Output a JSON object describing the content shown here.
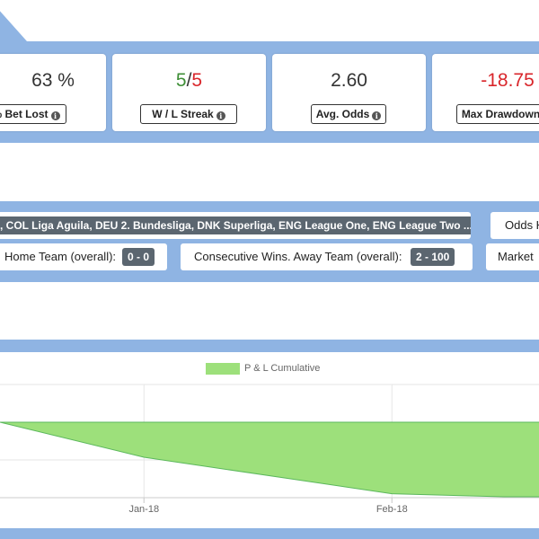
{
  "colors": {
    "accent_band": "#8fb4e3",
    "win": "#3e8e36",
    "loss": "#d9262b",
    "area_fill": "#9de07b",
    "area_line": "#5cb85c",
    "pill_bg": "#5b6670"
  },
  "stats": [
    {
      "value": "63 %",
      "label": "% Bet Lost"
    },
    {
      "wins": "5",
      "separator": "/",
      "losses": "5",
      "label": "W / L Streak"
    },
    {
      "value": "2.60",
      "label": "Avg. Odds"
    },
    {
      "value": "-18.75",
      "label": "Max Drawdown"
    }
  ],
  "filters": {
    "leagues": ", COL Liga Aguila, DEU 2. Bundesliga, DNK Superliga, ENG League One, ENG League Two ...",
    "odds_label": "Odds H",
    "home_label": "Home Team (overall):",
    "home_value": "0 - 0",
    "away_label": "Consecutive Wins. Away Team (overall):",
    "away_value": "2 - 100",
    "market_label": "Market"
  },
  "info_icon": "info-circle-icon",
  "chart_data": {
    "type": "area",
    "legend": [
      "P & L Cumulative"
    ],
    "x_tick_labels": [
      "Jan-18",
      "Feb-18"
    ],
    "series": [
      {
        "name": "P & L Cumulative",
        "x": [
          "2017-12-14",
          "2018-01-01",
          "2018-01-20",
          "2018-02-01",
          "2018-02-15"
        ],
        "values": [
          -4.3,
          -9.0,
          -12.0,
          -13.9,
          -14.3
        ]
      }
    ],
    "baseline": -4.3,
    "grid": true,
    "legend_position": "top-center"
  }
}
